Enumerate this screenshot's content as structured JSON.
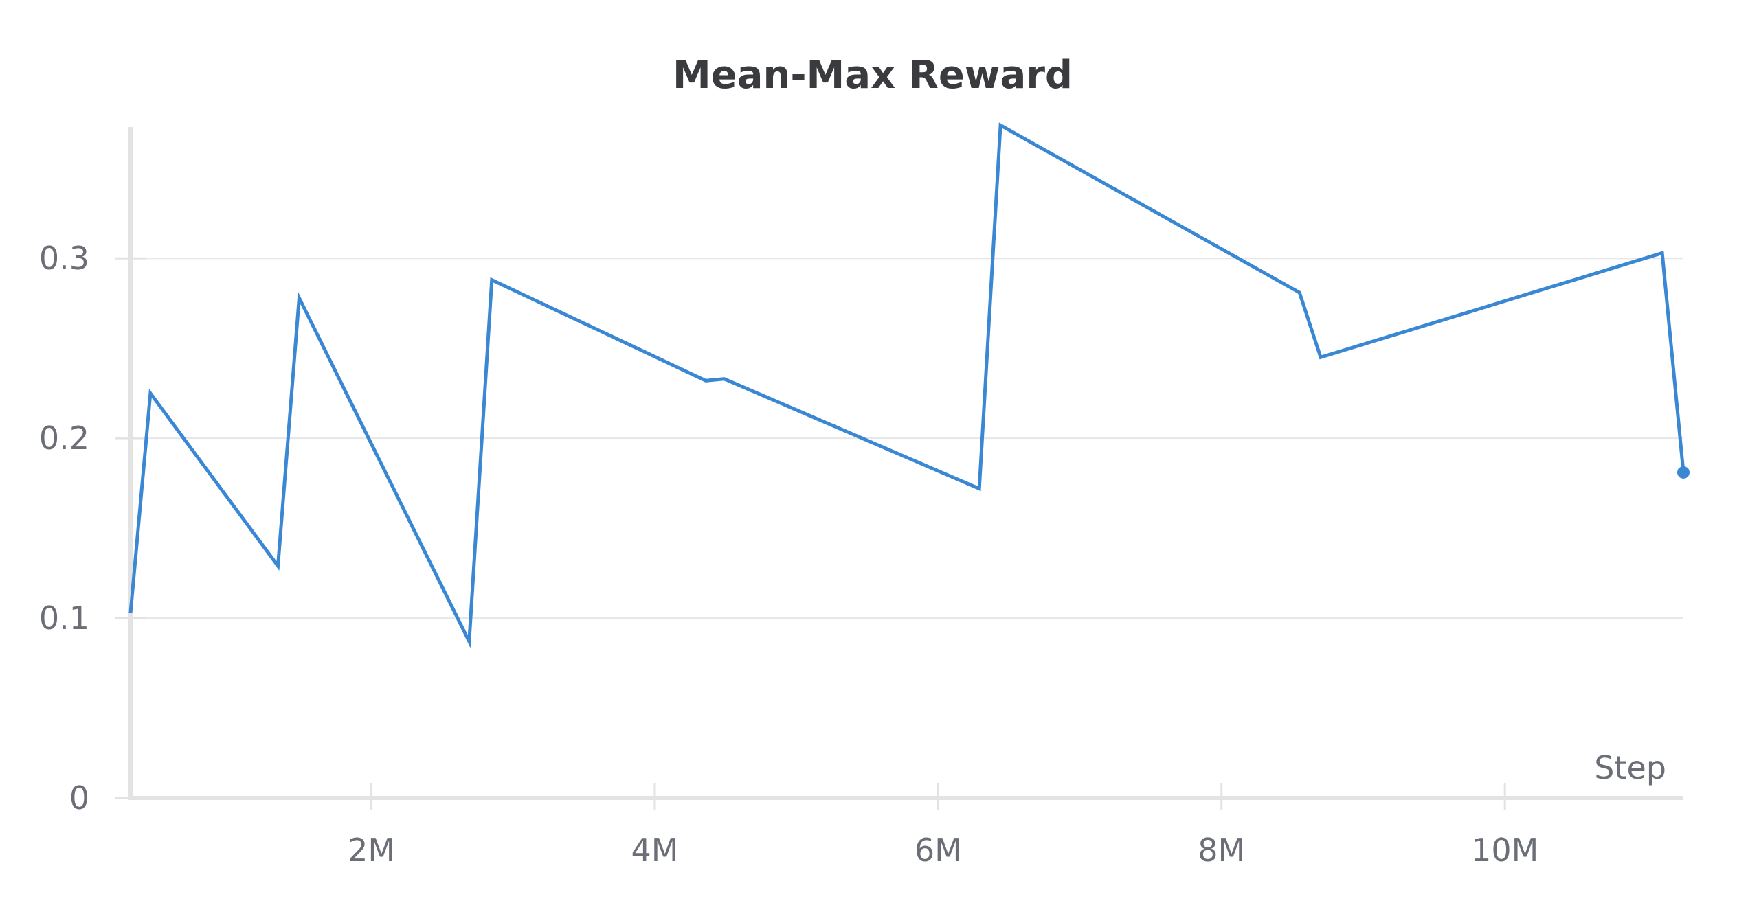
{
  "chart_data": {
    "type": "line",
    "title": "Mean-Max Reward",
    "xlabel": "Step",
    "ylabel": "",
    "xlim": [
      300000,
      11260000
    ],
    "ylim": [
      0,
      0.373
    ],
    "x_ticks": [
      2000000,
      4000000,
      6000000,
      8000000,
      10000000
    ],
    "x_tick_labels": [
      "2M",
      "4M",
      "6M",
      "8M",
      "10M"
    ],
    "y_ticks": [
      0,
      0.1,
      0.2,
      0.3
    ],
    "y_tick_labels": [
      "0",
      "0.1",
      "0.2",
      "0.3"
    ],
    "grid": true,
    "colors": {
      "series": "#3a87d4",
      "grid": "#e6e6e6",
      "axis": "#e3e3e3"
    },
    "series": [
      {
        "x": [
          300000,
          440000,
          1340000,
          1490000,
          2690000,
          2850000,
          4360000,
          4490000,
          6290000,
          6440000,
          8550000,
          8700000,
          11110000,
          11260000
        ],
        "values": [
          0.103,
          0.225,
          0.129,
          0.278,
          0.087,
          0.288,
          0.232,
          0.233,
          0.172,
          0.374,
          0.281,
          0.245,
          0.303,
          0.181
        ]
      }
    ]
  }
}
